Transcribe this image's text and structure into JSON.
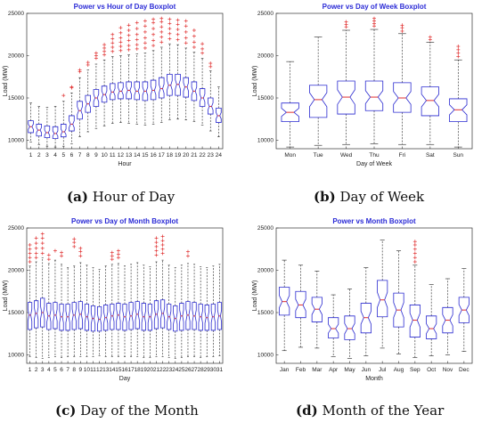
{
  "chart_data": [
    {
      "type": "boxplot",
      "title": "Power vs Hour of Day Boxplot",
      "xlabel": "Hour",
      "ylabel": "Load (MW)",
      "ylim": [
        9000,
        25000
      ],
      "yticks": [
        10000,
        15000,
        20000,
        25000
      ],
      "categories": [
        "1",
        "2",
        "3",
        "4",
        "5",
        "6",
        "7",
        "8",
        "9",
        "10",
        "11",
        "12",
        "13",
        "14",
        "15",
        "16",
        "17",
        "18",
        "19",
        "20",
        "21",
        "22",
        "23",
        "24"
      ],
      "box_color": "#2a2ad0",
      "median_color": "#e03030",
      "outlier_color": "#e03030",
      "boxes": [
        {
          "q1": 10900,
          "median": 11600,
          "q3": 12300,
          "whislo": 9800,
          "whishi": 14400,
          "outliers": []
        },
        {
          "q1": 10500,
          "median": 11200,
          "q3": 11900,
          "whislo": 9500,
          "whishi": 14000,
          "outliers": []
        },
        {
          "q1": 10300,
          "median": 10900,
          "q3": 11700,
          "whislo": 9300,
          "whishi": 13900,
          "outliers": []
        },
        {
          "q1": 10200,
          "median": 10800,
          "q3": 11600,
          "whislo": 9200,
          "whishi": 14000,
          "outliers": []
        },
        {
          "q1": 10400,
          "median": 11000,
          "q3": 11900,
          "whislo": 9300,
          "whishi": 14600,
          "outliers": [
            15300
          ]
        },
        {
          "q1": 11100,
          "median": 11900,
          "q3": 12900,
          "whislo": 9600,
          "whishi": 15600,
          "outliers": [
            16200,
            16300
          ]
        },
        {
          "q1": 12500,
          "median": 13500,
          "q3": 14600,
          "whislo": 10400,
          "whishi": 17400,
          "outliers": [
            18100,
            18300
          ]
        },
        {
          "q1": 13300,
          "median": 14300,
          "q3": 15300,
          "whislo": 11000,
          "whishi": 18300,
          "outliers": [
            18900,
            19200
          ]
        },
        {
          "q1": 14000,
          "median": 15000,
          "q3": 16000,
          "whislo": 11400,
          "whishi": 19000,
          "outliers": [
            19700,
            20000,
            20300
          ]
        },
        {
          "q1": 14500,
          "median": 15400,
          "q3": 16400,
          "whislo": 11700,
          "whishi": 19500,
          "outliers": [
            20100,
            20500,
            20900,
            21300
          ]
        },
        {
          "q1": 14800,
          "median": 15700,
          "q3": 16700,
          "whislo": 12000,
          "whishi": 19900,
          "outliers": [
            20500,
            21000,
            21500,
            22000,
            22500
          ]
        },
        {
          "q1": 14900,
          "median": 15800,
          "q3": 16800,
          "whislo": 12100,
          "whishi": 20000,
          "outliers": [
            20600,
            21100,
            21600,
            22100,
            22700,
            23300
          ]
        },
        {
          "q1": 14900,
          "median": 15900,
          "q3": 16900,
          "whislo": 12000,
          "whishi": 20100,
          "outliers": [
            20700,
            21200,
            21800,
            22400,
            23000,
            23600
          ]
        },
        {
          "q1": 14800,
          "median": 15800,
          "q3": 16900,
          "whislo": 11900,
          "whishi": 20200,
          "outliers": [
            20800,
            21300,
            21900,
            22500,
            23200,
            23900
          ]
        },
        {
          "q1": 14700,
          "median": 15800,
          "q3": 16900,
          "whislo": 11800,
          "whishi": 20300,
          "outliers": [
            20900,
            21500,
            22100,
            22800,
            23500,
            24100
          ]
        },
        {
          "q1": 14800,
          "median": 15900,
          "q3": 17100,
          "whislo": 11900,
          "whishi": 20600,
          "outliers": [
            21200,
            21800,
            22500,
            23200,
            23900,
            24300
          ]
        },
        {
          "q1": 15000,
          "median": 16100,
          "q3": 17400,
          "whislo": 12100,
          "whishi": 21000,
          "outliers": [
            21600,
            22200,
            22800,
            23400,
            24000,
            24400
          ]
        },
        {
          "q1": 15300,
          "median": 16500,
          "q3": 17800,
          "whislo": 12400,
          "whishi": 21400,
          "outliers": [
            22000,
            22600,
            23200,
            23800,
            24300
          ]
        },
        {
          "q1": 15300,
          "median": 16600,
          "q3": 17800,
          "whislo": 12500,
          "whishi": 21300,
          "outliers": [
            21900,
            22500,
            23100,
            23700,
            24200
          ]
        },
        {
          "q1": 15100,
          "median": 16300,
          "q3": 17400,
          "whislo": 12400,
          "whishi": 20900,
          "outliers": [
            21500,
            22100,
            22800,
            23500,
            24100
          ]
        },
        {
          "q1": 14700,
          "median": 15800,
          "q3": 16900,
          "whislo": 12200,
          "whishi": 20400,
          "outliers": [
            21000,
            21600,
            22300,
            23000
          ]
        },
        {
          "q1": 14000,
          "median": 15000,
          "q3": 16100,
          "whislo": 11800,
          "whishi": 19700,
          "outliers": [
            20300,
            20800,
            21400
          ]
        },
        {
          "q1": 13100,
          "median": 14000,
          "q3": 15000,
          "whislo": 11100,
          "whishi": 18200,
          "outliers": [
            18700,
            19100
          ]
        },
        {
          "q1": 12100,
          "median": 12900,
          "q3": 13800,
          "whislo": 10400,
          "whishi": 16300,
          "outliers": []
        }
      ]
    },
    {
      "type": "boxplot",
      "title": "Power vs Day of Week Boxplot",
      "xlabel": "Day of Week",
      "ylabel": "Load (MW)",
      "ylim": [
        9000,
        25000
      ],
      "yticks": [
        10000,
        15000,
        20000,
        25000
      ],
      "categories": [
        "Mon",
        "Tue",
        "Wed",
        "Thu",
        "Fri",
        "Sat",
        "Sun"
      ],
      "box_color": "#2a2ad0",
      "median_color": "#e03030",
      "outlier_color": "#e03030",
      "boxes": [
        {
          "q1": 12200,
          "median": 13300,
          "q3": 14400,
          "whislo": 9200,
          "whishi": 19300,
          "outliers": []
        },
        {
          "q1": 12700,
          "median": 14800,
          "q3": 16500,
          "whislo": 9400,
          "whishi": 22200,
          "outliers": []
        },
        {
          "q1": 13100,
          "median": 15100,
          "q3": 17000,
          "whislo": 9500,
          "whishi": 23000,
          "outliers": [
            23400,
            23700,
            24000
          ]
        },
        {
          "q1": 13500,
          "median": 15100,
          "q3": 17000,
          "whislo": 9600,
          "whishi": 23100,
          "outliers": [
            23500,
            23800,
            24100,
            24400
          ]
        },
        {
          "q1": 13300,
          "median": 15000,
          "q3": 16800,
          "whislo": 9500,
          "whishi": 22600,
          "outliers": [
            22900,
            23300,
            23600
          ]
        },
        {
          "q1": 12900,
          "median": 14700,
          "q3": 16300,
          "whislo": 9500,
          "whishi": 21600,
          "outliers": [
            21900,
            22200
          ]
        },
        {
          "q1": 12200,
          "median": 13600,
          "q3": 14900,
          "whislo": 9200,
          "whishi": 19500,
          "outliers": [
            19900,
            20300,
            20700,
            21100
          ]
        }
      ]
    },
    {
      "type": "boxplot",
      "title": "Power vs Day of Month Boxplot",
      "xlabel": "Day",
      "ylabel": "Load (MW)",
      "ylim": [
        9000,
        25000
      ],
      "yticks": [
        10000,
        15000,
        20000,
        25000
      ],
      "categories": [
        "1",
        "2",
        "3",
        "4",
        "5",
        "6",
        "7",
        "8",
        "9",
        "10",
        "11",
        "12",
        "13",
        "14",
        "15",
        "16",
        "17",
        "18",
        "19",
        "20",
        "21",
        "22",
        "23",
        "24",
        "25",
        "26",
        "27",
        "28",
        "29",
        "30",
        "31"
      ],
      "box_color": "#2a2ad0",
      "median_color": "#e03030",
      "outlier_color": "#e03030",
      "boxes": [
        {
          "q1": 13000,
          "median": 14700,
          "q3": 16200,
          "whislo": 9800,
          "whishi": 20500,
          "outliers": [
            21000,
            21500,
            22000,
            22500,
            23000
          ]
        },
        {
          "q1": 13200,
          "median": 14900,
          "q3": 16400,
          "whislo": 9700,
          "whishi": 21000,
          "outliers": [
            21500,
            22000,
            22600,
            23200,
            23800
          ]
        },
        {
          "q1": 13300,
          "median": 15000,
          "q3": 16700,
          "whislo": 9600,
          "whishi": 21500,
          "outliers": [
            22000,
            22600,
            23200,
            23800,
            24300
          ]
        },
        {
          "q1": 13000,
          "median": 14600,
          "q3": 16100,
          "whislo": 9700,
          "whishi": 20800,
          "outliers": [
            21300,
            21800
          ]
        },
        {
          "q1": 13100,
          "median": 14700,
          "q3": 16200,
          "whislo": 9800,
          "whishi": 21200,
          "outliers": [
            22300
          ]
        },
        {
          "q1": 12900,
          "median": 14500,
          "q3": 16000,
          "whislo": 9700,
          "whishi": 20700,
          "outliers": [
            21700,
            22100
          ]
        },
        {
          "q1": 12900,
          "median": 14500,
          "q3": 16000,
          "whislo": 9800,
          "whishi": 20300,
          "outliers": []
        },
        {
          "q1": 13000,
          "median": 14700,
          "q3": 16200,
          "whislo": 9800,
          "whishi": 20500,
          "outliers": [
            22800,
            23300,
            23700
          ]
        },
        {
          "q1": 13100,
          "median": 14800,
          "q3": 16300,
          "whislo": 9800,
          "whishi": 20900,
          "outliers": [
            21700,
            22200,
            22600
          ]
        },
        {
          "q1": 12900,
          "median": 14500,
          "q3": 16000,
          "whislo": 9800,
          "whishi": 20600,
          "outliers": []
        },
        {
          "q1": 12800,
          "median": 14300,
          "q3": 15800,
          "whislo": 9800,
          "whishi": 20300,
          "outliers": []
        },
        {
          "q1": 12800,
          "median": 14200,
          "q3": 15700,
          "whislo": 9900,
          "whishi": 20100,
          "outliers": []
        },
        {
          "q1": 12900,
          "median": 14400,
          "q3": 15900,
          "whislo": 9800,
          "whishi": 20500,
          "outliers": []
        },
        {
          "q1": 13000,
          "median": 14600,
          "q3": 16000,
          "whislo": 9800,
          "whishi": 20700,
          "outliers": [
            21300,
            21700,
            22100
          ]
        },
        {
          "q1": 13000,
          "median": 14700,
          "q3": 16100,
          "whislo": 9800,
          "whishi": 20800,
          "outliers": [
            21500,
            21900,
            22300
          ]
        },
        {
          "q1": 12900,
          "median": 14500,
          "q3": 16000,
          "whislo": 9800,
          "whishi": 20500,
          "outliers": []
        },
        {
          "q1": 13000,
          "median": 14600,
          "q3": 16200,
          "whislo": 9800,
          "whishi": 20700,
          "outliers": []
        },
        {
          "q1": 13100,
          "median": 14800,
          "q3": 16300,
          "whislo": 9800,
          "whishi": 20900,
          "outliers": []
        },
        {
          "q1": 12900,
          "median": 14500,
          "q3": 16100,
          "whislo": 9700,
          "whishi": 20600,
          "outliers": []
        },
        {
          "q1": 12900,
          "median": 14500,
          "q3": 16000,
          "whislo": 9700,
          "whishi": 20400,
          "outliers": []
        },
        {
          "q1": 13100,
          "median": 14800,
          "q3": 16400,
          "whislo": 9800,
          "whishi": 21000,
          "outliers": [
            21800,
            22300,
            22800,
            23300,
            23800
          ]
        },
        {
          "q1": 13200,
          "median": 14900,
          "q3": 16500,
          "whislo": 9800,
          "whishi": 21200,
          "outliers": [
            22000,
            22500,
            23000,
            23500,
            24000
          ]
        },
        {
          "q1": 13000,
          "median": 14500,
          "q3": 16000,
          "whislo": 9700,
          "whishi": 20600,
          "outliers": []
        },
        {
          "q1": 12800,
          "median": 14300,
          "q3": 15800,
          "whislo": 9600,
          "whishi": 20300,
          "outliers": []
        },
        {
          "q1": 12900,
          "median": 14600,
          "q3": 16100,
          "whislo": 9700,
          "whishi": 20600,
          "outliers": []
        },
        {
          "q1": 13000,
          "median": 14700,
          "q3": 16300,
          "whislo": 9800,
          "whishi": 20800,
          "outliers": [
            21700,
            22200
          ]
        },
        {
          "q1": 13000,
          "median": 14600,
          "q3": 16200,
          "whislo": 9800,
          "whishi": 20700,
          "outliers": []
        },
        {
          "q1": 12900,
          "median": 14500,
          "q3": 16000,
          "whislo": 9700,
          "whishi": 20400,
          "outliers": []
        },
        {
          "q1": 12900,
          "median": 14400,
          "q3": 15900,
          "whislo": 9800,
          "whishi": 20300,
          "outliers": []
        },
        {
          "q1": 12900,
          "median": 14500,
          "q3": 16000,
          "whislo": 9800,
          "whishi": 20500,
          "outliers": []
        },
        {
          "q1": 13000,
          "median": 14600,
          "q3": 16200,
          "whislo": 9900,
          "whishi": 20700,
          "outliers": []
        }
      ]
    },
    {
      "type": "boxplot",
      "title": "Power vs Month Boxplot",
      "xlabel": "Month",
      "ylabel": "Load (MW)",
      "ylim": [
        9000,
        25000
      ],
      "yticks": [
        10000,
        15000,
        20000,
        25000
      ],
      "categories": [
        "Jan",
        "Feb",
        "Mar",
        "Apr",
        "May",
        "Jun",
        "Jul",
        "Aug",
        "Sep",
        "Oct",
        "Nov",
        "Dec"
      ],
      "box_color": "#2a2ad0",
      "median_color": "#e03030",
      "outlier_color": "#e03030",
      "boxes": [
        {
          "q1": 14700,
          "median": 16300,
          "q3": 18000,
          "whislo": 10500,
          "whishi": 21200,
          "outliers": []
        },
        {
          "q1": 14400,
          "median": 15900,
          "q3": 17500,
          "whislo": 10900,
          "whishi": 20600,
          "outliers": []
        },
        {
          "q1": 13900,
          "median": 15400,
          "q3": 16800,
          "whislo": 10800,
          "whishi": 19900,
          "outliers": []
        },
        {
          "q1": 12000,
          "median": 13100,
          "q3": 14400,
          "whislo": 9800,
          "whishi": 17100,
          "outliers": []
        },
        {
          "q1": 11800,
          "median": 13100,
          "q3": 14600,
          "whislo": 9600,
          "whishi": 17800,
          "outliers": []
        },
        {
          "q1": 12600,
          "median": 14400,
          "q3": 16100,
          "whislo": 9900,
          "whishi": 20300,
          "outliers": []
        },
        {
          "q1": 14500,
          "median": 16500,
          "q3": 18800,
          "whislo": 10800,
          "whishi": 23600,
          "outliers": []
        },
        {
          "q1": 13300,
          "median": 15300,
          "q3": 17300,
          "whislo": 10100,
          "whishi": 22300,
          "outliers": []
        },
        {
          "q1": 12100,
          "median": 14100,
          "q3": 15900,
          "whislo": 9700,
          "whishi": 20600,
          "outliers": [
            21000,
            21500,
            22000,
            22500,
            23000,
            23400
          ]
        },
        {
          "q1": 11900,
          "median": 13100,
          "q3": 14600,
          "whislo": 9900,
          "whishi": 18300,
          "outliers": []
        },
        {
          "q1": 12600,
          "median": 14100,
          "q3": 15600,
          "whislo": 10000,
          "whishi": 19000,
          "outliers": []
        },
        {
          "q1": 13800,
          "median": 15300,
          "q3": 16800,
          "whislo": 10400,
          "whishi": 20200,
          "outliers": []
        }
      ]
    }
  ],
  "captions": [
    {
      "letter": "(a)",
      "text": "Hour of Day"
    },
    {
      "letter": "(b)",
      "text": "Day of Week"
    },
    {
      "letter": "(c)",
      "text": "Day of the Month"
    },
    {
      "letter": "(d)",
      "text": "Month of the Year"
    }
  ]
}
